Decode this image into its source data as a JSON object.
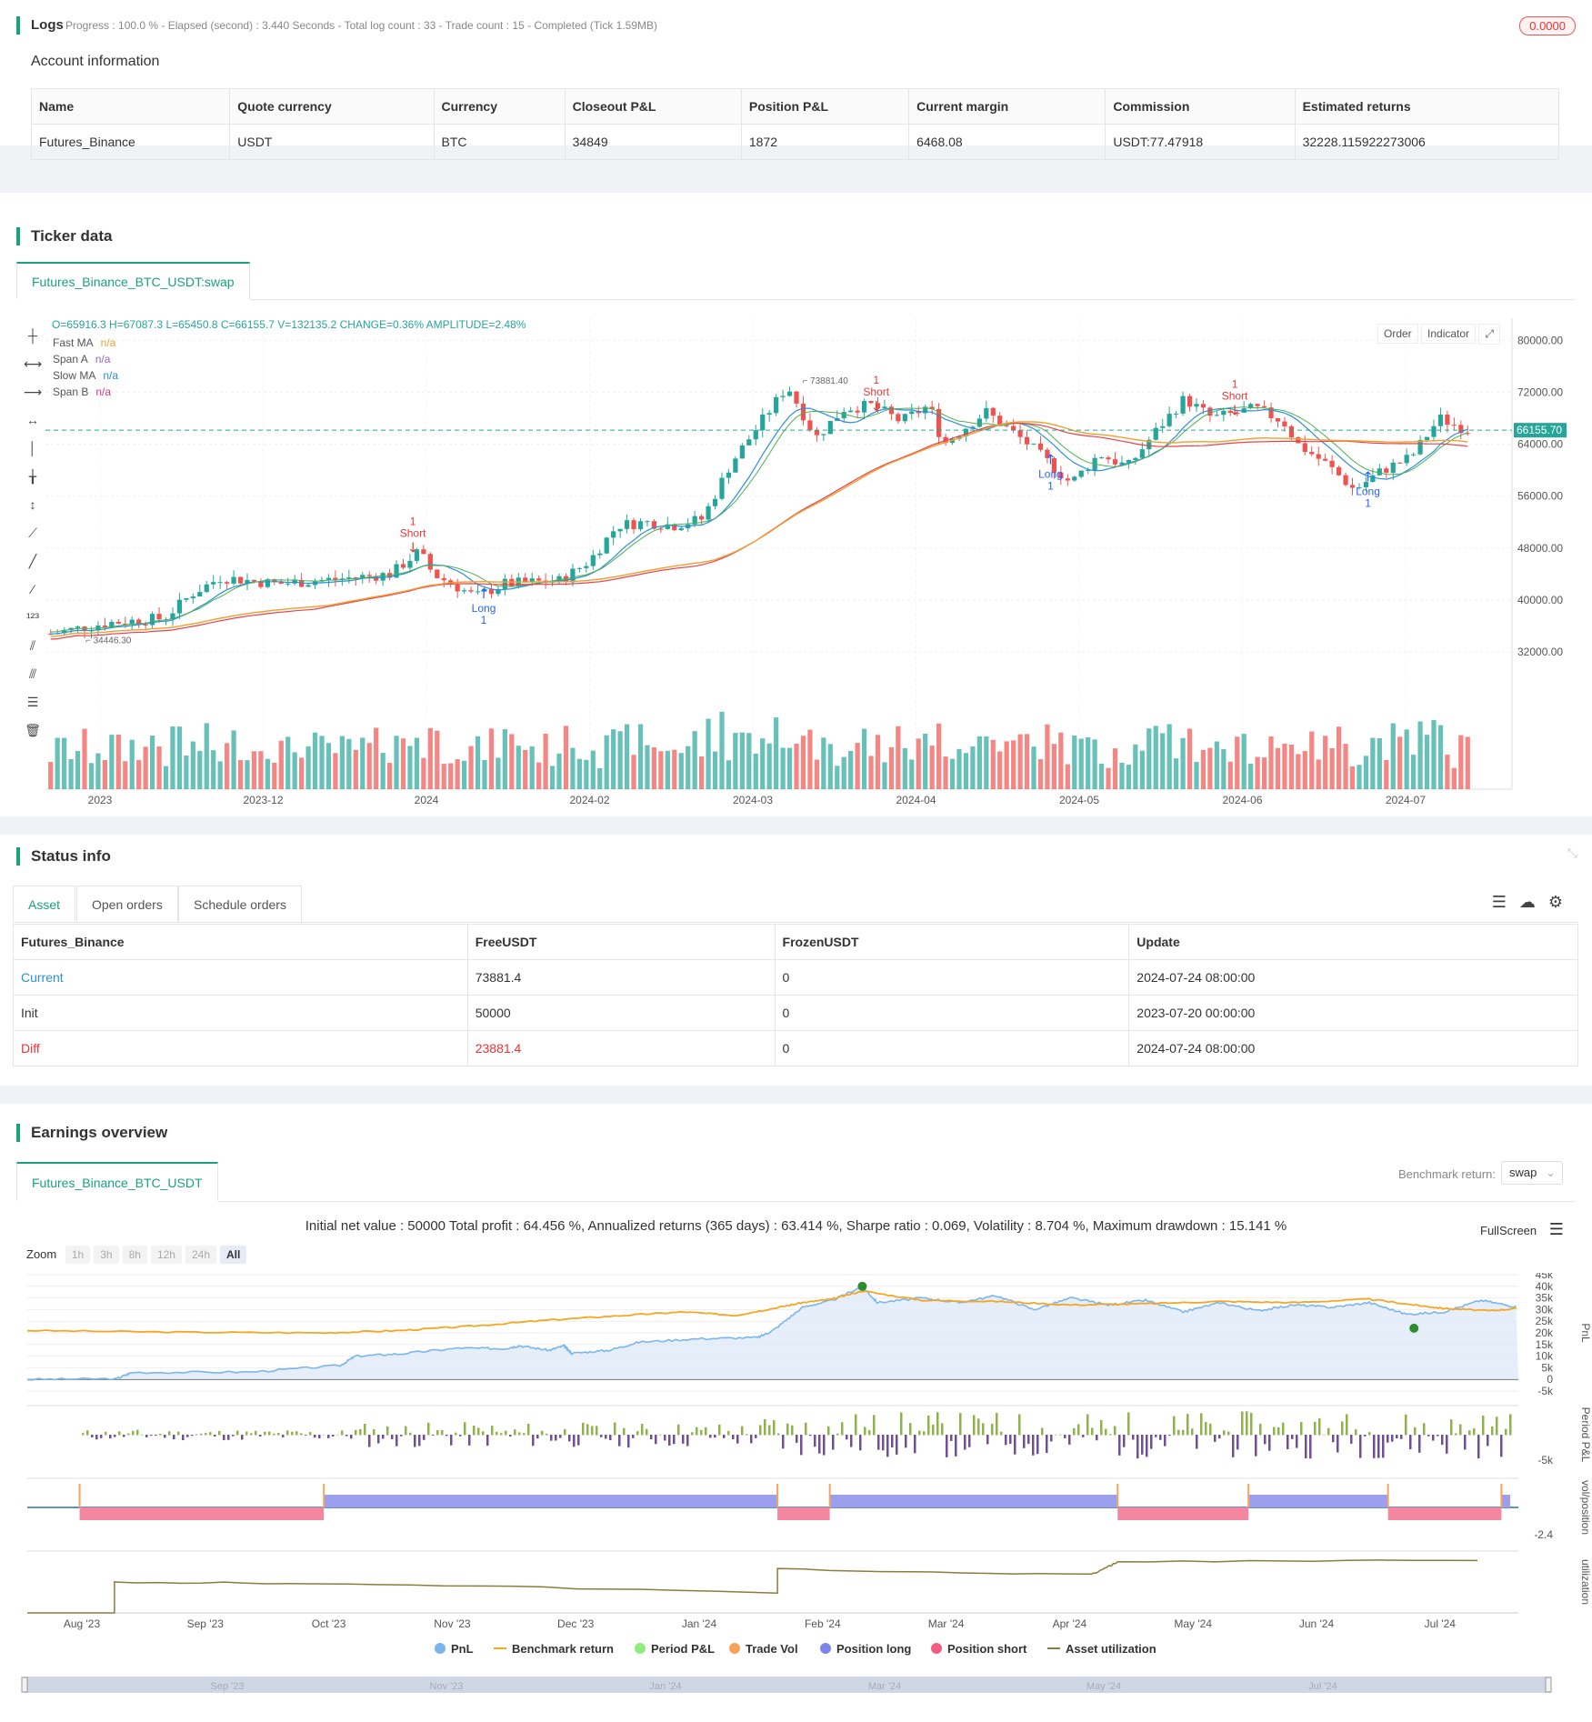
{
  "logs": {
    "title": "Logs",
    "status": "Progress : 100.0 % - Elapsed (second) : 3.440  Seconds - Total log count : 33 - Trade count : 15 - Completed (Tick 1.59MB)",
    "badge": "0.0000"
  },
  "account": {
    "title": "Account information",
    "headers": [
      "Name",
      "Quote currency",
      "Currency",
      "Closeout P&L",
      "Position P&L",
      "Current margin",
      "Commission",
      "Estimated returns"
    ],
    "row": [
      "Futures_Binance",
      "USDT",
      "BTC",
      "34849",
      "1872",
      "6468.08",
      "USDT:77.47918",
      "32228.115922273006"
    ]
  },
  "ticker": {
    "title": "Ticker data",
    "tab": "Futures_Binance_BTC_USDT:swap",
    "ohlc": "O=65916.3 H=67087.3 L=65450.8 C=66155.7 V=132135.2 CHANGE=0.36% AMPLITUDE=2.48%",
    "legend": [
      {
        "name": "Fast MA",
        "value": "n/a",
        "color": "#f0a030"
      },
      {
        "name": "Span A",
        "value": "n/a",
        "color": "#9c5fc8"
      },
      {
        "name": "Slow MA",
        "value": "n/a",
        "color": "#2a8fd8"
      },
      {
        "name": "Span B",
        "value": "n/a",
        "color": "#d43a8a"
      }
    ],
    "buttons": {
      "order": "Order",
      "indicator": "Indicator"
    },
    "price_labels": [
      "80000.00",
      "72000.00",
      "64000.00",
      "56000.00",
      "48000.00",
      "40000.00",
      "32000.00"
    ],
    "price_values": [
      80000,
      72000,
      64000,
      56000,
      48000,
      40000,
      32000
    ],
    "current_price": "66155.70",
    "current_price_value": 66155.7,
    "high_label": "73881.40",
    "high_value": 73881.4,
    "low_label": "34446.30",
    "low_value": 34446.3,
    "x_labels": [
      "2023",
      "2023-12",
      "2024",
      "2024-02",
      "2024-03",
      "2024-04",
      "2024-05",
      "2024-06",
      "2024-07"
    ],
    "markers": [
      {
        "type": "Short",
        "qty": "1",
        "t": 0.258,
        "price": 47600
      },
      {
        "type": "Long",
        "qty": "1",
        "t": 0.308,
        "price": 40300
      },
      {
        "type": "Short",
        "qty": "1",
        "t": 0.585,
        "price": 69400
      },
      {
        "type": "Long",
        "qty": "1",
        "t": 0.708,
        "price": 60900
      },
      {
        "type": "Short",
        "qty": "1",
        "t": 0.838,
        "price": 68800
      },
      {
        "type": "Long",
        "qty": "1",
        "t": 0.932,
        "price": 58300
      }
    ],
    "colors": {
      "up": "#26a69a",
      "down": "#ef5350",
      "fast": "#f0a030",
      "slow": "#2a8fd8",
      "spanA": "#4caf50",
      "spanB": "#e8424a",
      "long": "#2962ff",
      "short": "#e53935"
    }
  },
  "status": {
    "title": "Status info",
    "tabs": [
      "Asset",
      "Open orders",
      "Schedule orders"
    ],
    "headers": [
      "Futures_Binance",
      "FreeUSDT",
      "FrozenUSDT",
      "Update"
    ],
    "rows": [
      {
        "name": "Current",
        "free": "73881.4",
        "frozen": "0",
        "update": "2024-07-24 08:00:00"
      },
      {
        "name": "Init",
        "free": "50000",
        "frozen": "0",
        "update": "2023-07-20 00:00:00"
      },
      {
        "name": "Diff",
        "free": "23881.4",
        "frozen": "0",
        "update": "2024-07-24 08:00:00"
      }
    ]
  },
  "earnings": {
    "title": "Earnings overview",
    "tab": "Futures_Binance_BTC_USDT",
    "benchmark_label": "Benchmark return:",
    "benchmark_value": "swap",
    "summary": "Initial net value : 50000 Total profit : 64.456 %, Annualized returns (365 days) : 63.414 %, Sharpe ratio : 0.069, Volatility : 8.704 %, Maximum drawdown : 15.141 %",
    "fullscreen": "FullScreen",
    "zoom_label": "Zoom",
    "zoom_buttons": [
      "1h",
      "3h",
      "8h",
      "12h",
      "24h",
      "All"
    ],
    "pnl_axis": [
      "45k",
      "40k",
      "35k",
      "30k",
      "25k",
      "20k",
      "15k",
      "10k",
      "5k",
      "0",
      "-5k"
    ],
    "pnl_axis_values": [
      45000,
      40000,
      35000,
      30000,
      25000,
      20000,
      15000,
      10000,
      5000,
      0,
      -5000
    ],
    "period_axis": [
      "-5k"
    ],
    "vol_axis": [
      "-2.4"
    ],
    "panel_titles": [
      "PnL",
      "Period P&L",
      "vol/position",
      "utilization"
    ],
    "x_labels": [
      "Aug '23",
      "Sep '23",
      "Oct '23",
      "Nov '23",
      "Dec '23",
      "Jan '24",
      "Feb '24",
      "Mar '24",
      "Apr '24",
      "May '24",
      "Jun '24",
      "Jul '24"
    ],
    "nav_labels": [
      "Sep '23",
      "Nov '23",
      "Jan '24",
      "Mar '24",
      "May '24",
      "Jul '24"
    ],
    "legend": [
      {
        "name": "PnL",
        "color": "#7cb5ec",
        "kind": "dot"
      },
      {
        "name": "Benchmark return",
        "color": "#f5a623",
        "kind": "line"
      },
      {
        "name": "Period P&L",
        "color": "#90ed7d",
        "kind": "dot"
      },
      {
        "name": "Trade Vol",
        "color": "#f7a35c",
        "kind": "dot"
      },
      {
        "name": "Position long",
        "color": "#8085e9",
        "kind": "dot"
      },
      {
        "name": "Position short",
        "color": "#f15c80",
        "kind": "dot"
      },
      {
        "name": "Asset utilization",
        "color": "#8b7d3a",
        "kind": "line"
      }
    ]
  }
}
